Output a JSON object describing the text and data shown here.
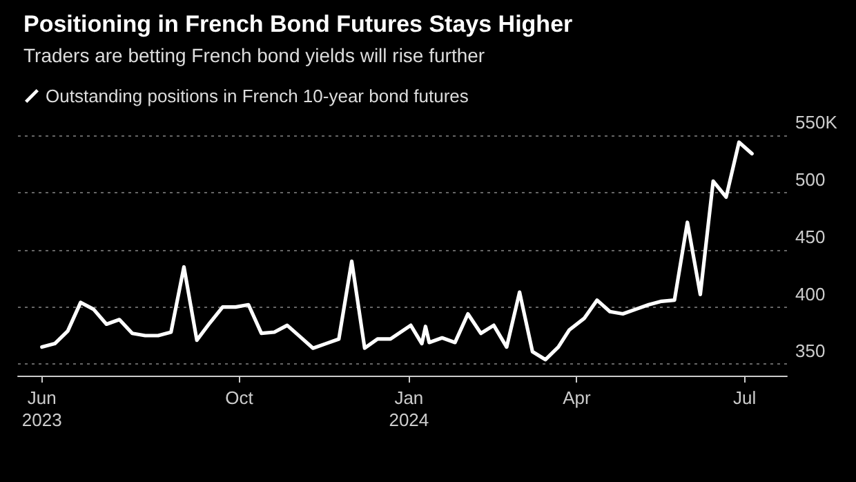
{
  "chart_data": {
    "type": "line",
    "title": "Positioning in French Bond Futures Stays Higher",
    "subtitle": "Traders are betting French bond yields will rise further",
    "x": [
      "2023-06-16",
      "2023-06-23",
      "2023-06-30",
      "2023-07-07",
      "2023-07-14",
      "2023-07-21",
      "2023-07-28",
      "2023-08-04",
      "2023-08-11",
      "2023-08-18",
      "2023-08-25",
      "2023-09-01",
      "2023-09-08",
      "2023-09-15",
      "2023-09-22",
      "2023-09-29",
      "2023-10-06",
      "2023-10-13",
      "2023-10-20",
      "2023-10-27",
      "2023-11-03",
      "2023-11-10",
      "2023-11-17",
      "2023-11-24",
      "2023-12-01",
      "2023-12-08",
      "2023-12-15",
      "2023-12-22",
      "2024-01-02",
      "2024-01-08",
      "2024-01-10",
      "2024-01-12",
      "2024-01-19",
      "2024-01-26",
      "2024-02-02",
      "2024-02-09",
      "2024-02-16",
      "2024-02-23",
      "2024-03-01",
      "2024-03-08",
      "2024-03-15",
      "2024-03-22",
      "2024-03-28",
      "2024-04-05",
      "2024-04-12",
      "2024-04-19",
      "2024-04-26",
      "2024-05-03",
      "2024-05-10",
      "2024-05-17",
      "2024-05-24",
      "2024-05-31",
      "2024-06-07",
      "2024-06-14",
      "2024-06-21",
      "2024-06-28",
      "2024-07-05"
    ],
    "series": [
      {
        "name": "Outstanding positions in French 10-year bond futures",
        "color": "#ffffff",
        "values": [
          365,
          368,
          379,
          404,
          398,
          385,
          389,
          377,
          375,
          375,
          378,
          435,
          371,
          386,
          400,
          400,
          402,
          377,
          378,
          384,
          374,
          364,
          368,
          372,
          440,
          364,
          372,
          372,
          384,
          368,
          383,
          369,
          373,
          369,
          394,
          377,
          384,
          365,
          413,
          361,
          354,
          365,
          380,
          390,
          406,
          396,
          394,
          398,
          402,
          405,
          406,
          474,
          411,
          510,
          496,
          544,
          534
        ]
      }
    ],
    "xlim": [
      "2023-06-03",
      "2024-07-24"
    ],
    "xticks": [
      {
        "value": "2023-06-16",
        "label": "Jun\n2023"
      },
      {
        "value": "2023-10-01",
        "label": "Oct"
      },
      {
        "value": "2024-01-01",
        "label": "Jan\n2024"
      },
      {
        "value": "2024-04-01",
        "label": "Apr"
      },
      {
        "value": "2024-07-01",
        "label": "Jul"
      }
    ],
    "ylim": [
      340,
      550
    ],
    "yticks": [
      350,
      400,
      450,
      500,
      {
        "value": 550,
        "label": "550K"
      }
    ],
    "grid": "y",
    "legend": "top left",
    "line_style": "solid"
  }
}
